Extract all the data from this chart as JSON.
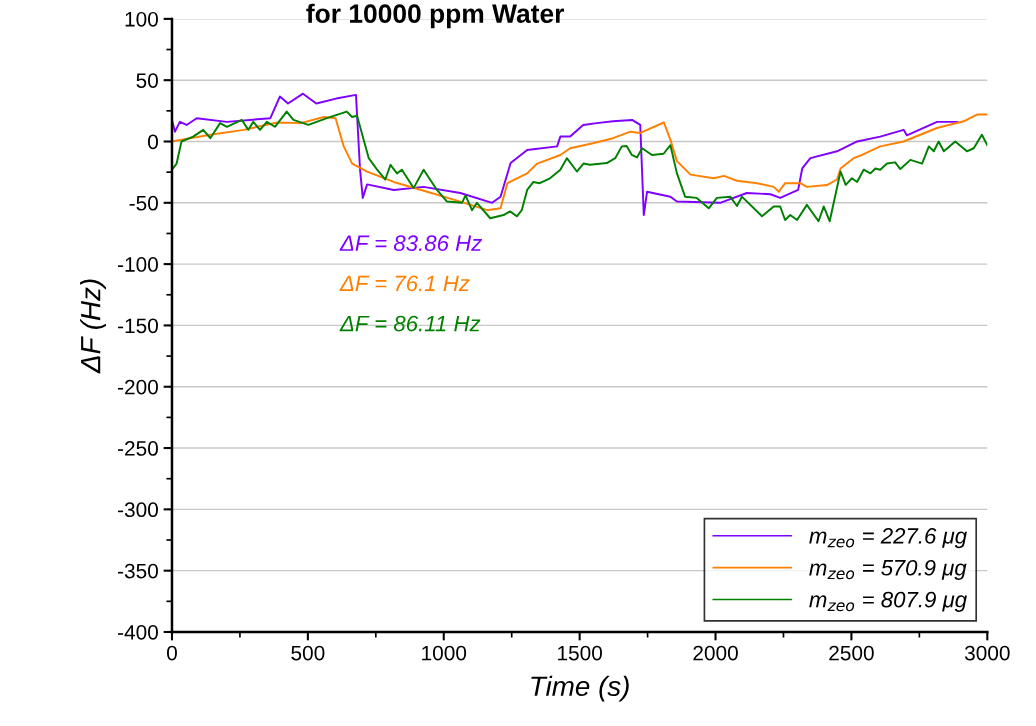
{
  "chart_data": {
    "type": "line",
    "title": "for 10000 ppm Water",
    "xlabel": "Time (s)",
    "ylabel": "ΔF (Hz)",
    "xlim": [
      0,
      3000
    ],
    "xticks": [
      0,
      500,
      1000,
      1500,
      2000,
      2500,
      3000
    ],
    "ylim": [
      -400,
      100
    ],
    "yticks": [
      -400,
      -350,
      -300,
      -250,
      -200,
      -150,
      -100,
      -50,
      0,
      50,
      100
    ],
    "grid": "y",
    "legend": "bottom right",
    "line_style": "solid",
    "marker": "none",
    "annotations": [
      "ΔF = 83.86 Hz",
      "ΔF = 76.1 Hz",
      "ΔF = 86.11 Hz"
    ],
    "series": [
      {
        "name": "m$_{zeo}$ = 227.6 μg",
        "color": "#8000ff",
        "x": [
          0,
          11,
          29,
          54,
          91,
          202,
          362,
          397,
          427,
          482,
          531,
          604,
          677,
          692,
          702,
          718,
          816,
          926,
          1061,
          1178,
          1209,
          1246,
          1307,
          1417,
          1429,
          1465,
          1513,
          1563,
          1623,
          1693,
          1723,
          1736,
          1748,
          1834,
          1858,
          2017,
          2115,
          2202,
          2238,
          2304,
          2319,
          2349,
          2447,
          2521,
          2606,
          2692,
          2704,
          2815,
          2889
        ],
        "values": [
          17.6,
          8,
          16,
          13.5,
          19,
          16,
          19,
          36.6,
          31,
          39,
          31,
          35,
          38,
          -23,
          -46,
          -35,
          -39.5,
          -37,
          -42,
          -50,
          -45,
          -17.5,
          -7,
          -4,
          4,
          4,
          13.5,
          15,
          16.5,
          17.6,
          13.5,
          -60,
          -41,
          -45,
          -49,
          -50,
          -42,
          -43,
          -46,
          -39.5,
          -22,
          -13.6,
          -8,
          0,
          4,
          9.5,
          5,
          16,
          16
        ]
      },
      {
        "name": "m$_{zeo}$ = 570.9 μg",
        "color": "#ff8000",
        "x": [
          0,
          141,
          264,
          387,
          473,
          559,
          602,
          632,
          663,
          718,
          816,
          939,
          1061,
          1160,
          1209,
          1234,
          1307,
          1344,
          1429,
          1465,
          1549,
          1623,
          1687,
          1723,
          1810,
          1834,
          1858,
          1908,
          1994,
          2031,
          2079,
          2153,
          2214,
          2233,
          2256,
          2312,
          2336,
          2410,
          2447,
          2460,
          2508,
          2539,
          2606,
          2692,
          2815,
          2913,
          2962,
          3000
        ],
        "values": [
          0,
          5.5,
          9.5,
          15.5,
          15,
          20,
          19,
          -4,
          -18,
          -24.5,
          -33,
          -41,
          -49,
          -56,
          -54.5,
          -34,
          -26,
          -18,
          -11,
          -5.5,
          -1.4,
          2.7,
          8,
          7,
          15.5,
          1.3,
          -16,
          -27,
          -30,
          -28,
          -32,
          -34,
          -37,
          -41,
          -34,
          -34,
          -37,
          -35.5,
          -31,
          -22,
          -13.6,
          -11,
          -4,
          0,
          11,
          16.5,
          22,
          22
        ]
      },
      {
        "name": "m$_{zeo}$ = 807.9 μg",
        "color": "#008000",
        "x": [
          0,
          17,
          35,
          78,
          115,
          141,
          177,
          202,
          257,
          281,
          299,
          324,
          349,
          379,
          422,
          447,
          502,
          570,
          643,
          663,
          681,
          724,
          755,
          785,
          804,
          828,
          846,
          889,
          926,
          975,
          1012,
          1067,
          1080,
          1104,
          1122,
          1171,
          1220,
          1244,
          1269,
          1287,
          1307,
          1330,
          1353,
          1391,
          1429,
          1453,
          1490,
          1514,
          1538,
          1600,
          1631,
          1655,
          1673,
          1692,
          1711,
          1730,
          1766,
          1809,
          1834,
          1858,
          1888,
          1931,
          1975,
          2005,
          2054,
          2079,
          2097,
          2171,
          2214,
          2238,
          2256,
          2275,
          2300,
          2336,
          2379,
          2398,
          2420,
          2460,
          2479,
          2502,
          2521,
          2545,
          2570,
          2588,
          2606,
          2631,
          2661,
          2680,
          2717,
          2760,
          2785,
          2803,
          2821,
          2840,
          2882,
          2925,
          2950,
          2980,
          3000
        ],
        "values": [
          -23,
          -18,
          0,
          4,
          9.5,
          2.7,
          15,
          12,
          17.6,
          9.5,
          16,
          9.5,
          16,
          12,
          24.4,
          17.6,
          13.5,
          19,
          24.4,
          20,
          21,
          -13.6,
          -23,
          -31,
          -19,
          -26,
          -23,
          -38,
          -23,
          -39.5,
          -49,
          -50,
          -44,
          -56,
          -50,
          -62.6,
          -60,
          -57,
          -61,
          -56,
          -39.5,
          -33,
          -34,
          -30,
          -23,
          -13.6,
          -24.5,
          -18,
          -19,
          -17.6,
          -13.6,
          -4,
          -3.6,
          -11,
          -13,
          -5.5,
          -11,
          -10,
          -3,
          -26,
          -45,
          -46,
          -54.5,
          -46,
          -45,
          -52.6,
          -45,
          -61,
          -53,
          -53,
          -64,
          -60,
          -64,
          -51.7,
          -65,
          -53,
          -65,
          -24.5,
          -35.4,
          -30,
          -33,
          -23,
          -26,
          -22,
          -23,
          -18,
          -17,
          -22.5,
          -15,
          -18,
          -4,
          -8,
          0,
          -8,
          0,
          -8,
          -5.5,
          5.5,
          -3
        ]
      }
    ]
  }
}
